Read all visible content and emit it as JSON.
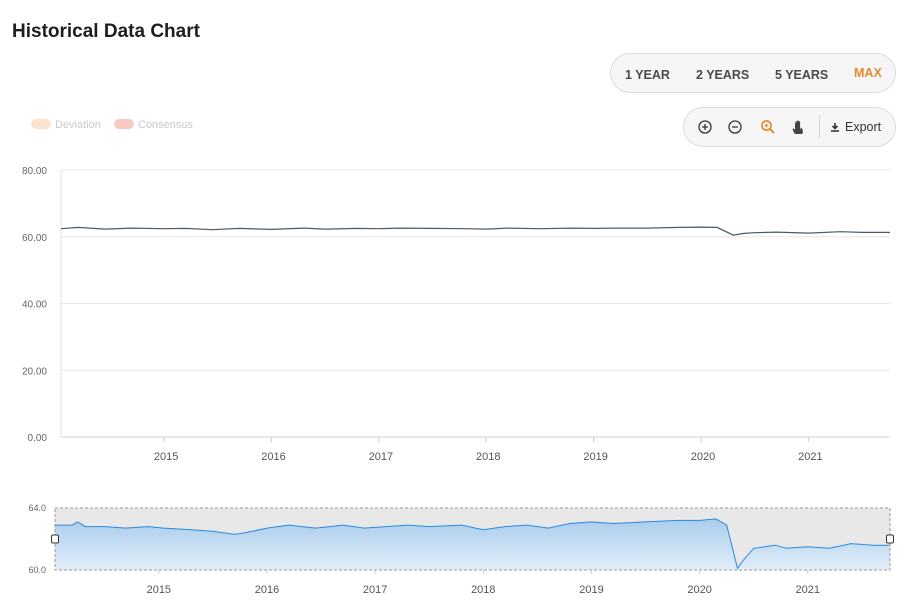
{
  "page": {
    "title": "Historical Data Chart"
  },
  "range_selector": {
    "buttons": [
      {
        "label": "1 YEAR",
        "active": false
      },
      {
        "label": "2 YEARS",
        "active": false
      },
      {
        "label": "5 YEARS",
        "active": false
      },
      {
        "label": "MAX",
        "active": true
      }
    ]
  },
  "toolbar": {
    "zoom_in_icon": "plus-circle-icon",
    "zoom_out_icon": "minus-circle-icon",
    "zoom_select_icon": "magnifier-icon",
    "pan_icon": "hand-icon",
    "export_label": "Export",
    "export_icon": "download-icon",
    "active_color": "#e58a2c"
  },
  "legend": {
    "items": [
      {
        "label": "Deviation",
        "color": "#fbe3cf"
      },
      {
        "label": "Consensus",
        "color": "#f6c9c2"
      }
    ]
  },
  "chart_data": [
    {
      "type": "line",
      "title": "",
      "xlabel": "",
      "ylabel": "",
      "x_tick_labels": [
        "2015",
        "2016",
        "2017",
        "2018",
        "2019",
        "2020",
        "2021"
      ],
      "y_tick_labels": [
        "0.00",
        "20.00",
        "40.00",
        "60.00",
        "80.00"
      ],
      "ylim": [
        0,
        80
      ],
      "xlim": [
        2014.04,
        2021.76
      ],
      "grid": true,
      "line_color": "#4a5a6e",
      "series": [
        {
          "x": [
            2014.04,
            2014.2,
            2014.45,
            2014.7,
            2015.0,
            2015.2,
            2015.45,
            2015.7,
            2016.0,
            2016.3,
            2016.5,
            2016.8,
            2017.0,
            2017.2,
            2017.5,
            2017.8,
            2018.0,
            2018.2,
            2018.5,
            2018.8,
            2019.0,
            2019.2,
            2019.5,
            2019.8,
            2020.0,
            2020.15,
            2020.3,
            2020.4,
            2020.5,
            2020.7,
            2021.0,
            2021.3,
            2021.5,
            2021.76
          ],
          "values": [
            62.4,
            62.8,
            62.3,
            62.6,
            62.4,
            62.5,
            62.1,
            62.5,
            62.2,
            62.6,
            62.3,
            62.5,
            62.4,
            62.6,
            62.5,
            62.4,
            62.3,
            62.6,
            62.4,
            62.6,
            62.5,
            62.6,
            62.6,
            62.8,
            62.9,
            62.8,
            60.5,
            61.0,
            61.2,
            61.4,
            61.1,
            61.5,
            61.3,
            61.3
          ]
        }
      ]
    },
    {
      "type": "area",
      "title": "",
      "x_tick_labels": [
        "2015",
        "2016",
        "2017",
        "2018",
        "2019",
        "2020",
        "2021"
      ],
      "y_tick_labels": [
        "60.0",
        "64.0"
      ],
      "ylim": [
        60,
        64
      ],
      "xlim": [
        2014.04,
        2021.76
      ],
      "line_color": "#2c8ae0",
      "fill_top_color": "#a9cdec",
      "fill_bottom_color": "#e2eef9",
      "selection_color": "#e8e8e8",
      "series": [
        {
          "x": [
            2014.04,
            2014.2,
            2014.25,
            2014.32,
            2014.5,
            2014.7,
            2014.9,
            2015.05,
            2015.3,
            2015.5,
            2015.7,
            2015.8,
            2016.0,
            2016.2,
            2016.45,
            2016.7,
            2016.9,
            2017.1,
            2017.3,
            2017.5,
            2017.8,
            2018.0,
            2018.2,
            2018.4,
            2018.6,
            2018.8,
            2019.0,
            2019.2,
            2019.5,
            2019.8,
            2020.0,
            2020.15,
            2020.25,
            2020.35,
            2020.4,
            2020.5,
            2020.7,
            2020.8,
            2021.0,
            2021.2,
            2021.4,
            2021.6,
            2021.76
          ],
          "values": [
            62.9,
            62.9,
            63.1,
            62.8,
            62.8,
            62.7,
            62.8,
            62.7,
            62.6,
            62.5,
            62.3,
            62.4,
            62.7,
            62.9,
            62.7,
            62.9,
            62.7,
            62.8,
            62.9,
            62.8,
            62.9,
            62.6,
            62.8,
            62.9,
            62.7,
            63.0,
            63.1,
            63.0,
            63.1,
            63.2,
            63.2,
            63.3,
            62.9,
            60.1,
            60.6,
            61.4,
            61.6,
            61.4,
            61.5,
            61.4,
            61.7,
            61.6,
            61.6
          ]
        }
      ]
    }
  ]
}
